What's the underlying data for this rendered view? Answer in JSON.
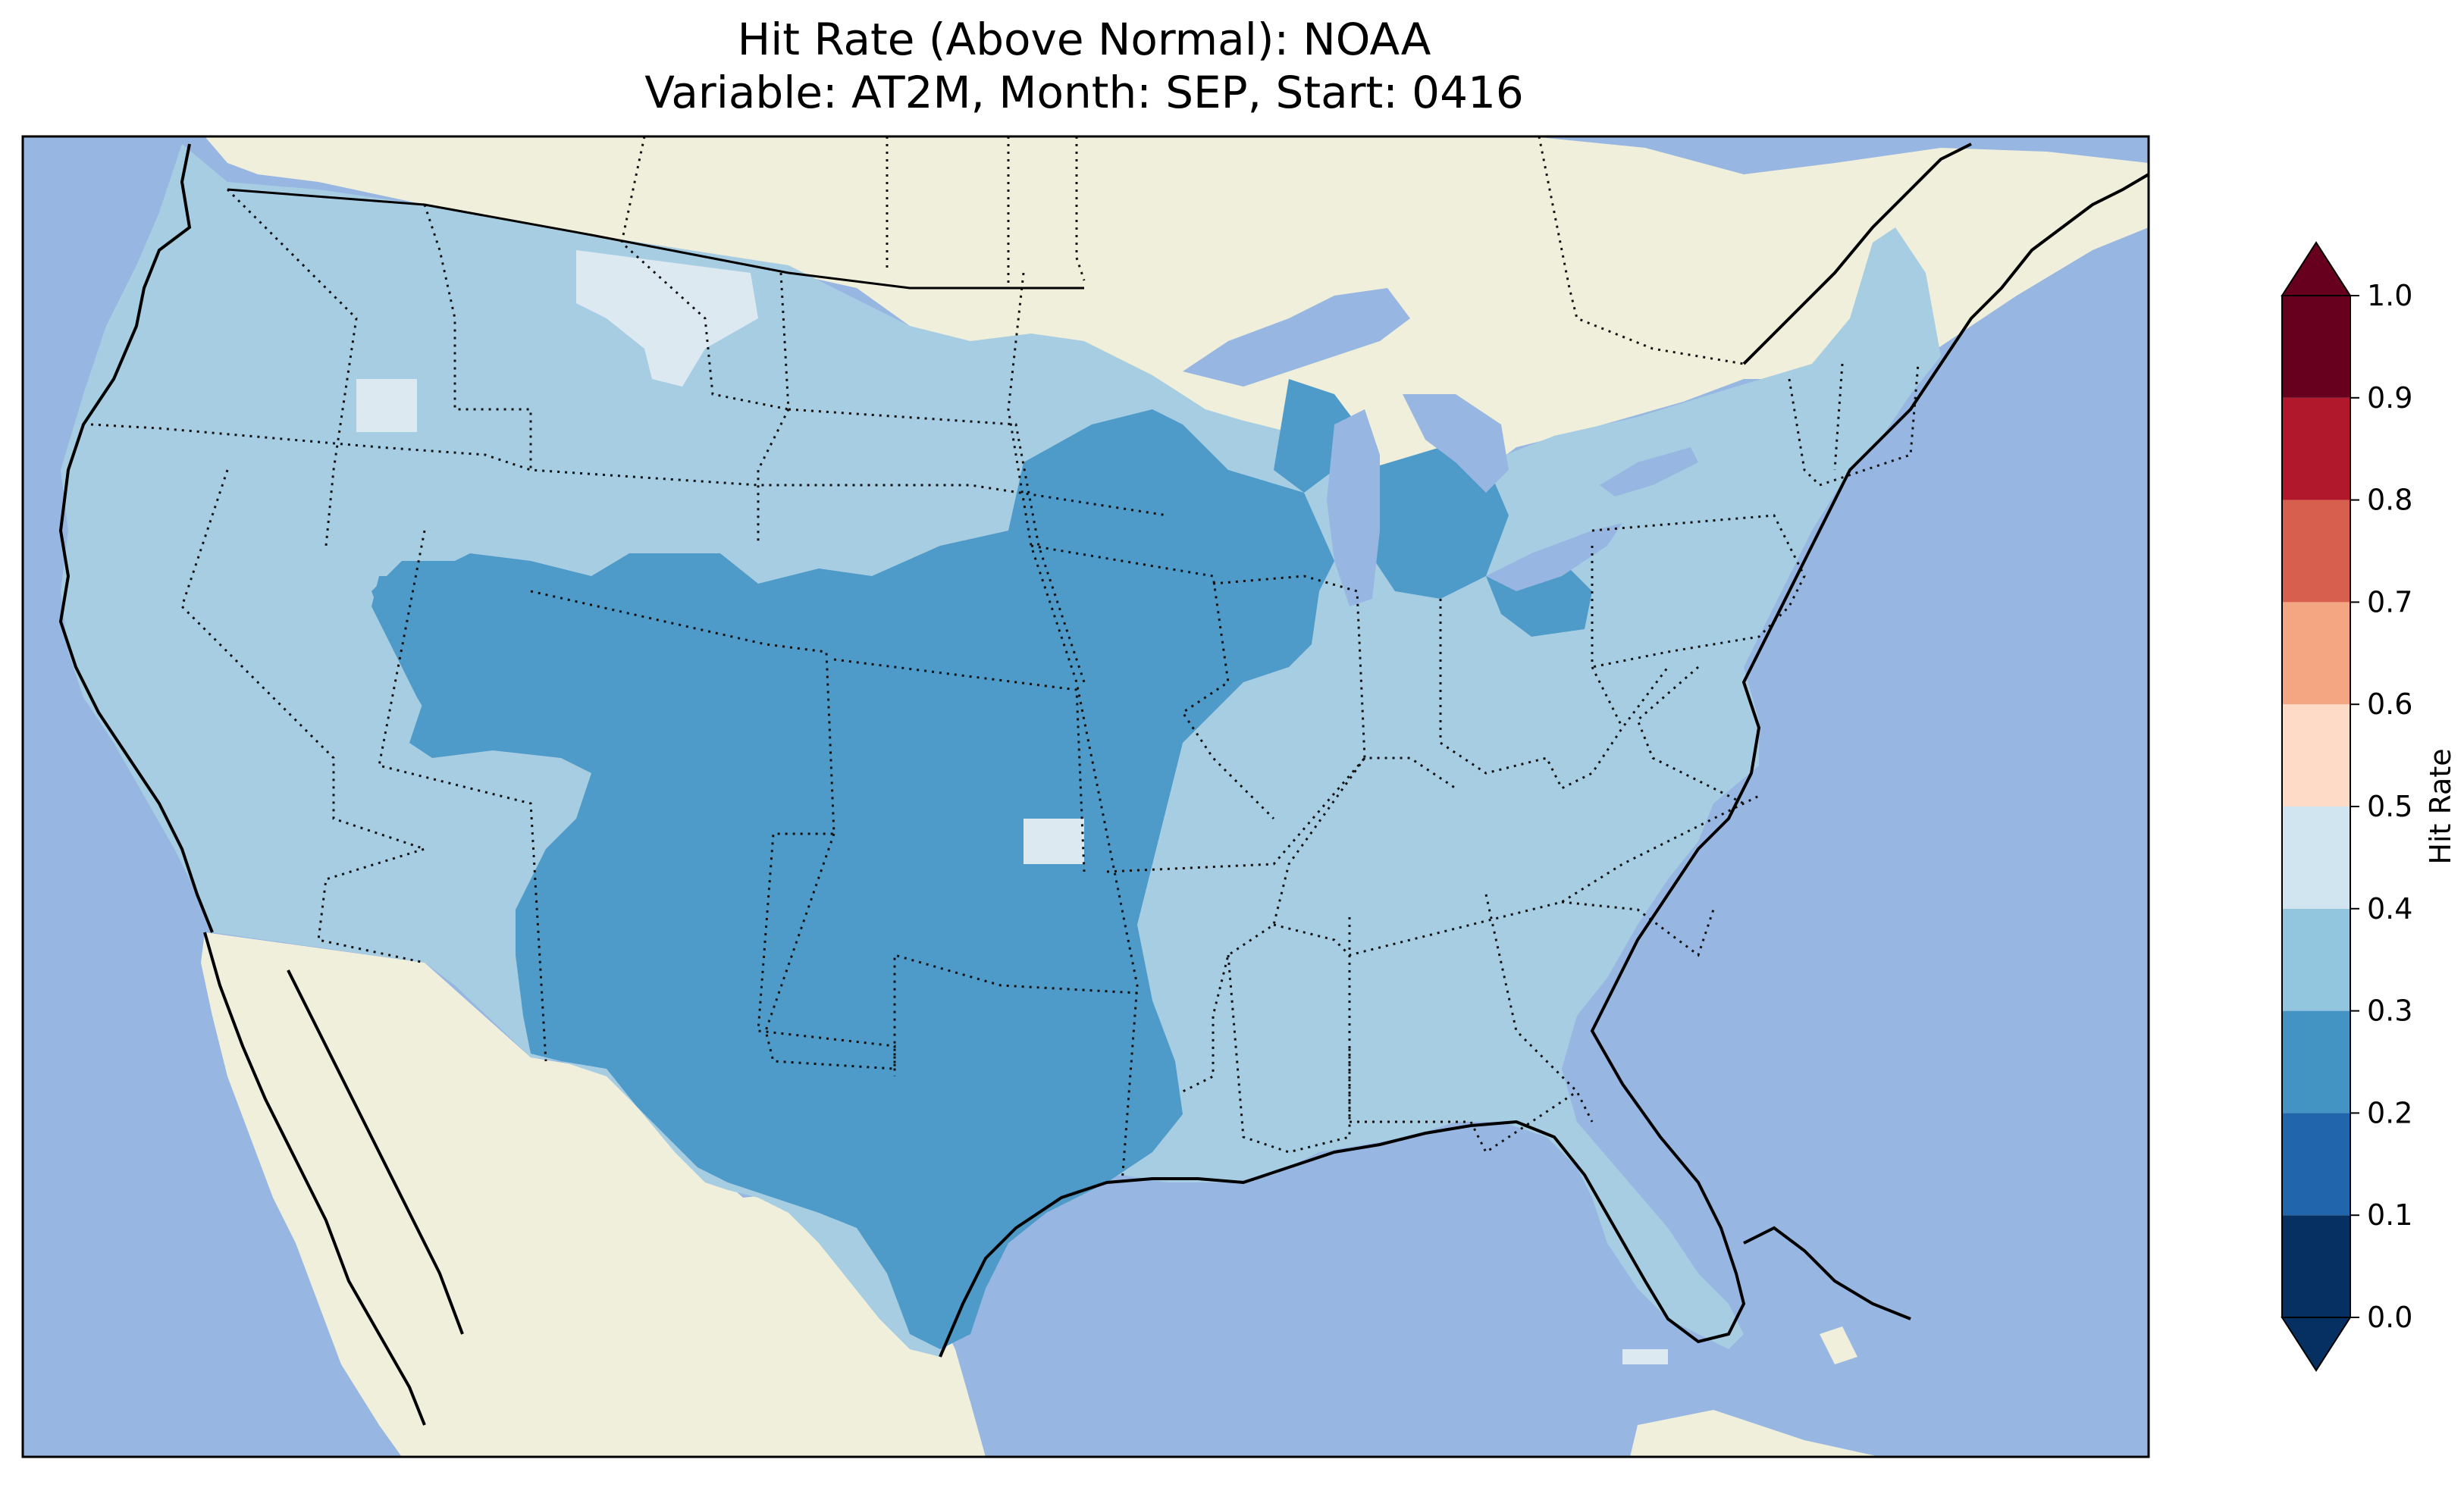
{
  "title": {
    "line1": "Hit Rate (Above Normal): NOAA",
    "line2": "Variable: AT2M, Month: SEP, Start: 0416"
  },
  "colorbar": {
    "label": "Hit Rate",
    "ticks": [
      "0.0",
      "0.1",
      "0.2",
      "0.3",
      "0.4",
      "0.5",
      "0.6",
      "0.7",
      "0.8",
      "0.9",
      "1.0"
    ],
    "bins": [
      {
        "range": [
          0.0,
          0.1
        ],
        "color": "#053061"
      },
      {
        "range": [
          0.1,
          0.2
        ],
        "color": "#2166ac"
      },
      {
        "range": [
          0.2,
          0.3
        ],
        "color": "#4393c3"
      },
      {
        "range": [
          0.3,
          0.4
        ],
        "color": "#92c5de"
      },
      {
        "range": [
          0.4,
          0.5
        ],
        "color": "#d1e5f0"
      },
      {
        "range": [
          0.5,
          0.6
        ],
        "color": "#fddbc7"
      },
      {
        "range": [
          0.6,
          0.7
        ],
        "color": "#f4a582"
      },
      {
        "range": [
          0.7,
          0.8
        ],
        "color": "#d6604d"
      },
      {
        "range": [
          0.8,
          0.9
        ],
        "color": "#b2182b"
      },
      {
        "range": [
          0.9,
          1.0
        ],
        "color": "#67001f"
      }
    ],
    "extend_under_color": "#053061",
    "extend_over_color": "#67001f"
  },
  "map": {
    "region": "Contiguous United States",
    "ocean_color": "#97b6e1",
    "land_color": "#efefdb",
    "field_colors": {
      "0.3-0.4": "#a7cde3",
      "0.2-0.3": "#4e9ac8",
      "0.4-0.5": "#dde9f1"
    }
  }
}
